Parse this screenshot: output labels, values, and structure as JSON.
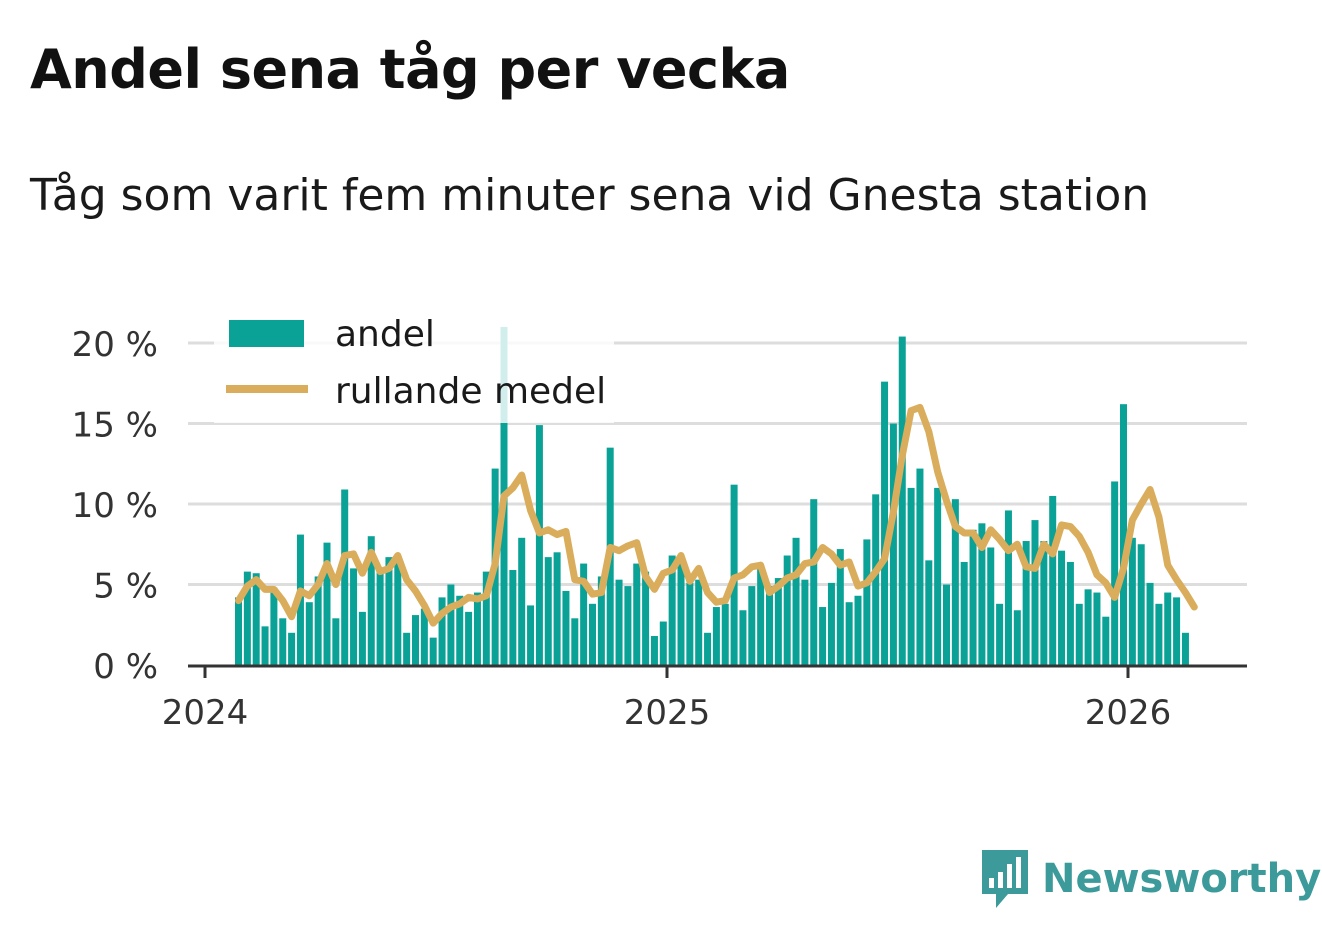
{
  "header": {
    "title": "Andel sena tåg per vecka",
    "subtitle": "Tåg som varit fem minuter sena vid Gnesta station"
  },
  "brand": {
    "name": "Newsworthy"
  },
  "colors": {
    "bar": "#0aa196",
    "line": "#d9ad5b",
    "grid": "#dddddd",
    "axis": "#333333",
    "brand": "#3c9a9a"
  },
  "chart_data": {
    "type": "bar",
    "title": "Andel sena tåg per vecka",
    "subtitle": "Tåg som varit fem minuter sena vid Gnesta station",
    "xlabel": "",
    "ylabel": "",
    "ylim": [
      0,
      21
    ],
    "yticks": [
      0,
      5,
      10,
      15,
      20
    ],
    "ytick_labels": [
      "0 %",
      "5 %",
      "10 %",
      "15 %",
      "20 %"
    ],
    "xtick_labels": [
      "2024",
      "2025",
      "2026"
    ],
    "grid": true,
    "legend_position": "top-left",
    "series": [
      {
        "name": "andel",
        "kind": "bar",
        "values": [
          4.2,
          5.8,
          5.7,
          2.4,
          4.8,
          2.9,
          2.0,
          8.1,
          3.9,
          5.5,
          7.6,
          2.9,
          10.9,
          6.0,
          3.3,
          8.0,
          5.8,
          6.7,
          6.4,
          2.0,
          3.1,
          3.5,
          1.7,
          4.2,
          5.0,
          4.3,
          3.3,
          4.5,
          5.8,
          12.2,
          21.0,
          5.9,
          7.9,
          3.7,
          14.9,
          6.7,
          7.0,
          4.6,
          2.9,
          6.3,
          3.8,
          5.5,
          13.5,
          5.3,
          4.9,
          6.3,
          5.8,
          1.8,
          2.7,
          6.8,
          6.7,
          5.1,
          5.3,
          2.0,
          3.6,
          3.8,
          11.2,
          3.4,
          4.9,
          6.1,
          4.9,
          5.4,
          6.8,
          7.9,
          5.3,
          10.3,
          3.6,
          5.1,
          7.2,
          3.9,
          4.3,
          7.8,
          10.6,
          17.6,
          15.0,
          20.4,
          11.0,
          12.2,
          6.5,
          11.0,
          5.0,
          10.3,
          6.4,
          8.4,
          8.8,
          7.3,
          3.8,
          9.6,
          3.4,
          7.7,
          9.0,
          7.7,
          10.5,
          7.1,
          6.4,
          3.8,
          4.7,
          4.5,
          3.0,
          11.4,
          16.2,
          7.9,
          7.5,
          5.1,
          3.8,
          4.5,
          4.2,
          2.0
        ]
      },
      {
        "name": "rullande medel",
        "kind": "line",
        "values": [
          4.0,
          4.9,
          5.3,
          4.7,
          4.7,
          4.0,
          3.0,
          4.6,
          4.3,
          5.0,
          6.3,
          5.0,
          6.8,
          6.9,
          5.7,
          7.0,
          5.8,
          6.0,
          6.8,
          5.3,
          4.6,
          3.7,
          2.6,
          3.2,
          3.6,
          3.8,
          4.2,
          4.1,
          4.3,
          6.3,
          10.5,
          11.0,
          11.8,
          9.6,
          8.2,
          8.4,
          8.1,
          8.3,
          5.3,
          5.2,
          4.4,
          4.5,
          7.3,
          7.1,
          7.4,
          7.6,
          5.5,
          4.7,
          5.7,
          5.9,
          6.8,
          5.2,
          6.0,
          4.5,
          3.9,
          4.0,
          5.4,
          5.6,
          6.1,
          6.2,
          4.5,
          4.9,
          5.4,
          5.6,
          6.3,
          6.4,
          7.3,
          6.9,
          6.2,
          6.4,
          4.9,
          5.1,
          5.8,
          6.6,
          9.5,
          13.0,
          15.8,
          16.0,
          14.5,
          12.0,
          10.2,
          8.6,
          8.2,
          8.2,
          7.3,
          8.4,
          7.8,
          7.1,
          7.5,
          6.1,
          6.0,
          7.5,
          6.9,
          8.7,
          8.6,
          8.0,
          7.0,
          5.6,
          5.1,
          4.2,
          6.0,
          9.0,
          10.0,
          10.9,
          9.2,
          6.2,
          5.3,
          4.5,
          3.6
        ]
      }
    ]
  }
}
